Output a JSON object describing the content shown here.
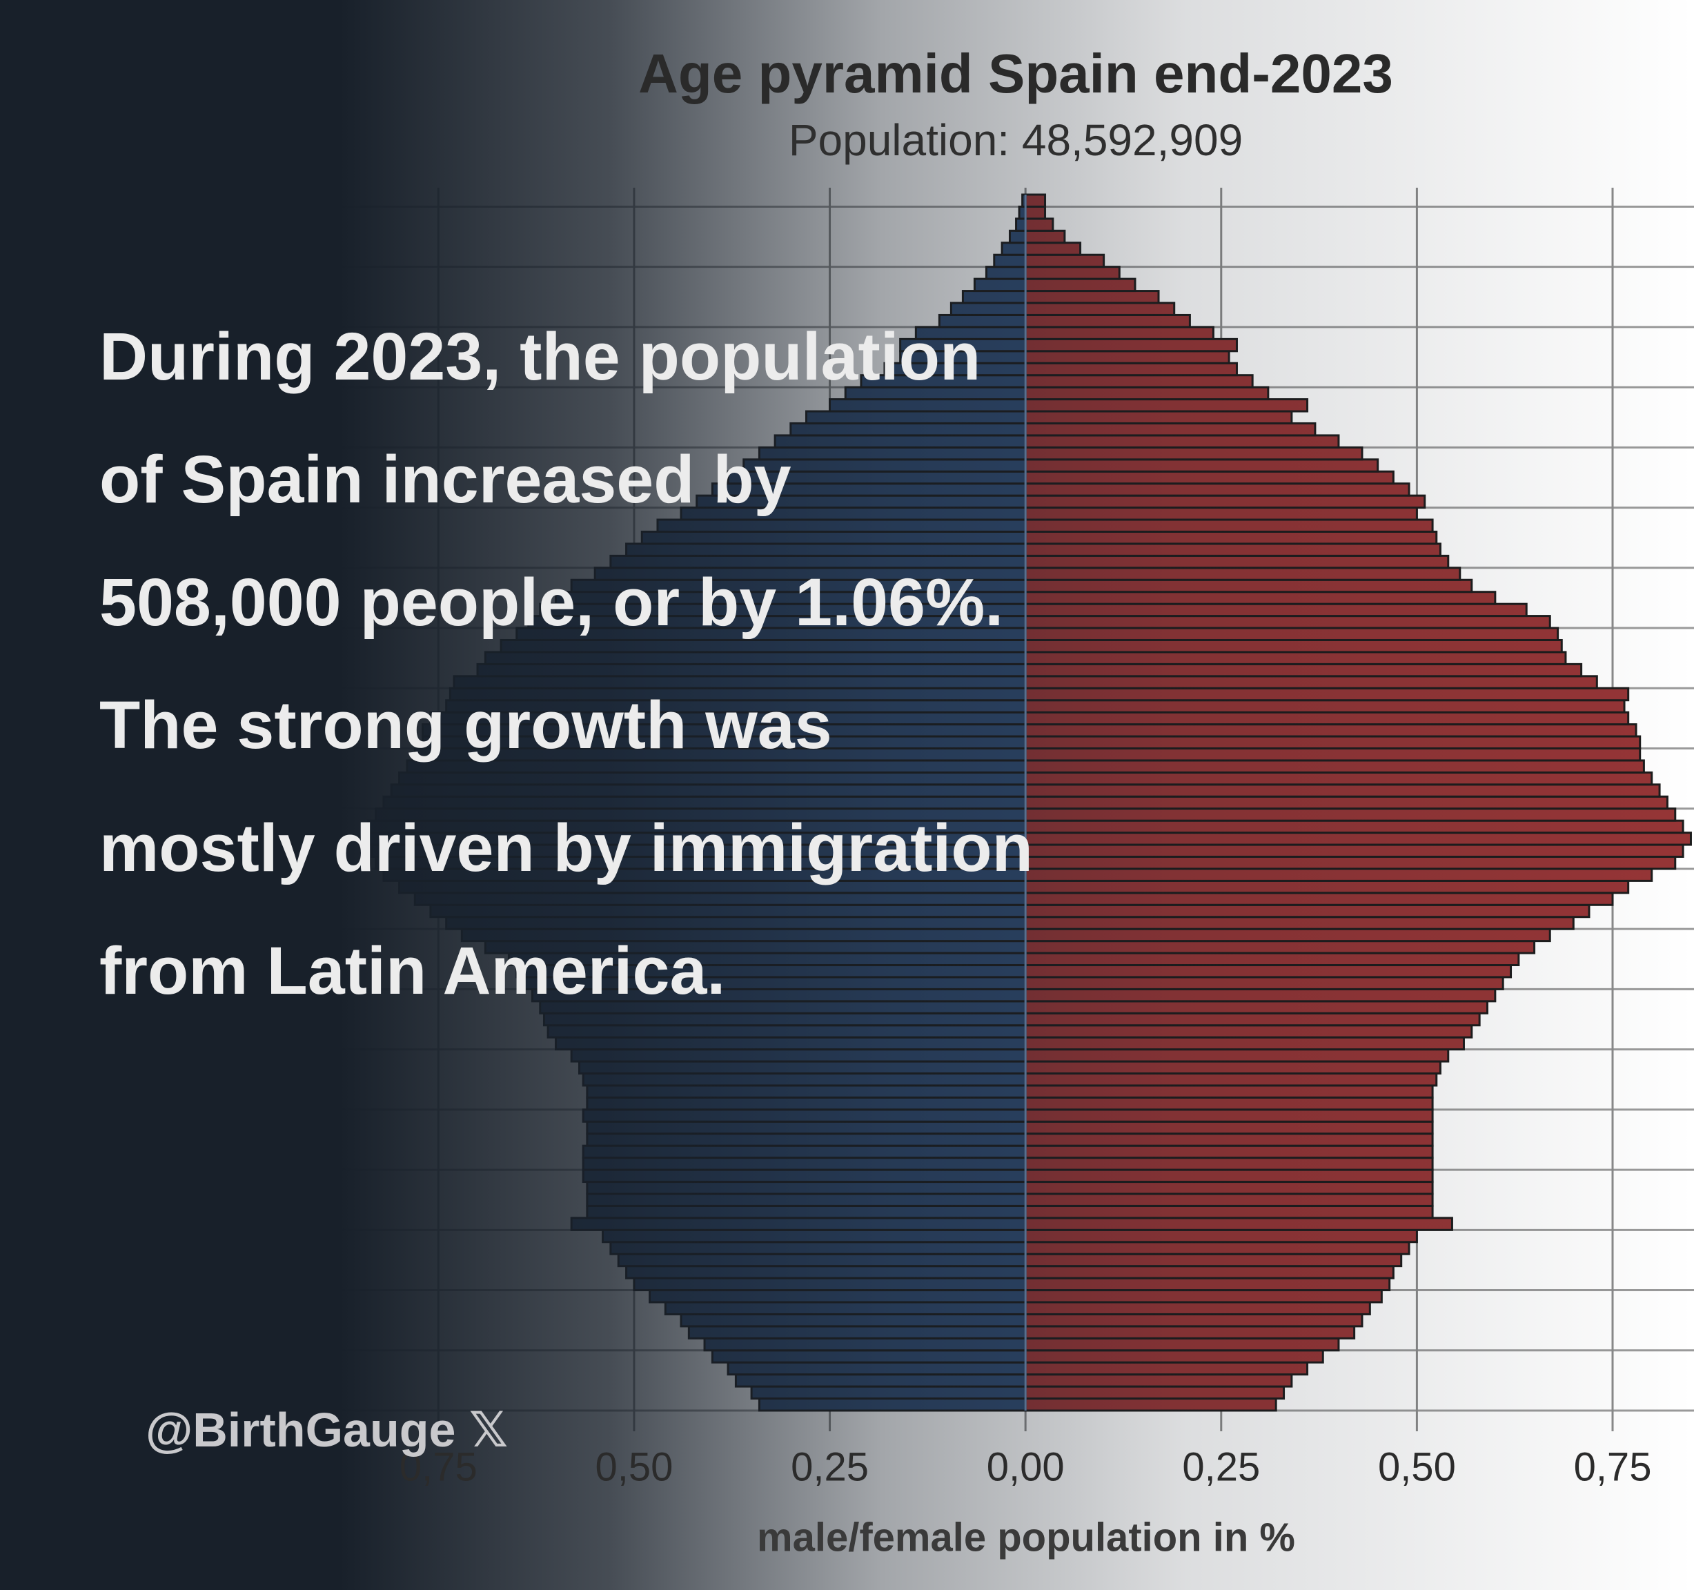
{
  "chart_data": {
    "type": "pyramid",
    "title": "Age pyramid Spain end-2023",
    "subtitle": "Population: 48,592,909",
    "x_label": "male/female population  in %",
    "annotations": [
      "During 2023, the population of Spain increased by 508,000 people, or by 1.06%.",
      "The strong growth was mostly driven by immigration from Latin America."
    ],
    "watermark": "@BirthGauge 𝕏",
    "xlim": [
      -1.31,
      0.854
    ],
    "xticks": [
      {
        "value": -0.75,
        "label": "0,75"
      },
      {
        "value": -0.5,
        "label": "0,50"
      },
      {
        "value": -0.25,
        "label": "0,25"
      },
      {
        "value": 0,
        "label": "0,00"
      },
      {
        "value": 0.25,
        "label": "0,25"
      },
      {
        "value": 0.5,
        "label": "0,50"
      },
      {
        "value": 0.75,
        "label": "0,75"
      }
    ],
    "grid": true,
    "series": [
      {
        "side": "left",
        "color": "#2f4a70",
        "values": [
          0.34,
          0.35,
          0.37,
          0.38,
          0.4,
          0.41,
          0.43,
          0.44,
          0.46,
          0.48,
          0.5,
          0.51,
          0.52,
          0.53,
          0.54,
          0.58,
          0.56,
          0.56,
          0.56,
          0.565,
          0.565,
          0.565,
          0.56,
          0.56,
          0.565,
          0.56,
          0.56,
          0.565,
          0.57,
          0.58,
          0.6,
          0.61,
          0.615,
          0.62,
          0.63,
          0.64,
          0.65,
          0.66,
          0.69,
          0.72,
          0.74,
          0.76,
          0.78,
          0.8,
          0.82,
          0.83,
          0.835,
          0.84,
          0.84,
          0.83,
          0.82,
          0.81,
          0.8,
          0.79,
          0.78,
          0.77,
          0.77,
          0.76,
          0.74,
          0.735,
          0.73,
          0.7,
          0.69,
          0.67,
          0.65,
          0.635,
          0.62,
          0.6,
          0.58,
          0.55,
          0.53,
          0.51,
          0.49,
          0.47,
          0.44,
          0.42,
          0.4,
          0.38,
          0.36,
          0.34,
          0.32,
          0.3,
          0.28,
          0.25,
          0.23,
          0.21,
          0.18,
          0.16,
          0.16,
          0.14,
          0.11,
          0.095,
          0.08,
          0.065,
          0.05,
          0.04,
          0.03,
          0.02,
          0.012,
          0.008,
          0.004
        ]
      },
      {
        "side": "right",
        "color": "#963536",
        "values": [
          0.32,
          0.33,
          0.34,
          0.36,
          0.38,
          0.4,
          0.42,
          0.43,
          0.44,
          0.455,
          0.465,
          0.47,
          0.48,
          0.49,
          0.5,
          0.545,
          0.52,
          0.52,
          0.52,
          0.52,
          0.52,
          0.52,
          0.52,
          0.52,
          0.52,
          0.52,
          0.52,
          0.525,
          0.53,
          0.54,
          0.56,
          0.57,
          0.58,
          0.59,
          0.6,
          0.61,
          0.62,
          0.63,
          0.65,
          0.67,
          0.7,
          0.72,
          0.75,
          0.77,
          0.8,
          0.83,
          0.84,
          0.85,
          0.84,
          0.83,
          0.82,
          0.81,
          0.8,
          0.79,
          0.785,
          0.785,
          0.78,
          0.77,
          0.765,
          0.77,
          0.73,
          0.71,
          0.69,
          0.685,
          0.68,
          0.67,
          0.64,
          0.6,
          0.57,
          0.555,
          0.54,
          0.53,
          0.525,
          0.52,
          0.5,
          0.51,
          0.49,
          0.47,
          0.45,
          0.43,
          0.4,
          0.37,
          0.34,
          0.36,
          0.31,
          0.29,
          0.27,
          0.26,
          0.27,
          0.24,
          0.21,
          0.19,
          0.17,
          0.14,
          0.12,
          0.1,
          0.07,
          0.05,
          0.035,
          0.025,
          0.025
        ]
      }
    ]
  }
}
